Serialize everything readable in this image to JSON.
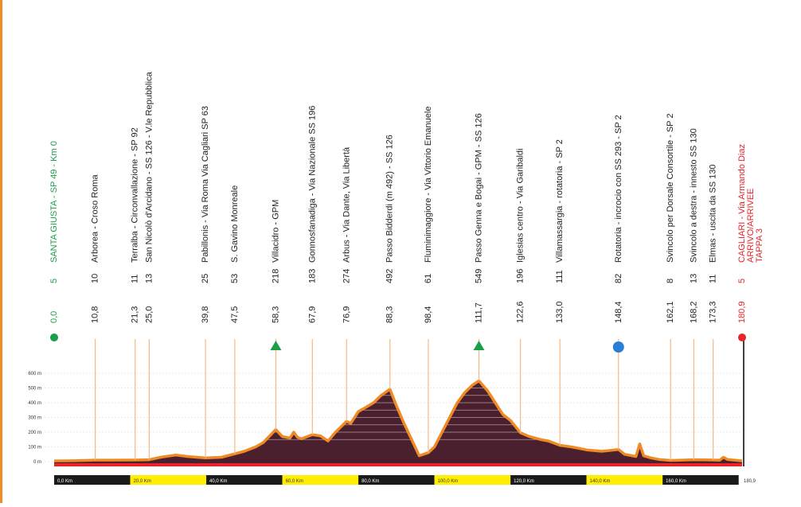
{
  "chart_data": {
    "type": "area",
    "title": "",
    "xlabel": "",
    "ylabel": "",
    "xlim": [
      0,
      180.9
    ],
    "ylim": [
      0,
      600
    ],
    "y_ticks": [
      "0 m",
      "100 m",
      "200 m",
      "300 m",
      "400 m",
      "500 m",
      "600 m"
    ],
    "x_ticks": [
      "0,0 Km",
      "20,0 Km",
      "40,0 Km",
      "60,0 Km",
      "80,0 Km",
      "100,0 Km",
      "120,0 Km",
      "140,0 Km",
      "160,0 Km",
      "180,9"
    ],
    "grid": true,
    "colors": {
      "fill": "#4a1f2e",
      "outline": "#f08a24",
      "start": "#1a9e4a",
      "finish": "#e8242a",
      "gpm": "#1a9e4a",
      "sprint": "#2a7fd4",
      "band_dark": "#1a1a1a",
      "band_light": "#ffee00",
      "marker_line": "#f2b98a"
    },
    "profile": {
      "x": [
        0,
        5,
        10.8,
        15,
        21.3,
        25,
        28,
        32,
        35,
        39.8,
        44,
        47.5,
        50,
        53,
        55,
        58.3,
        60,
        62,
        63,
        64,
        65,
        67.9,
        70,
        72,
        74,
        76.9,
        78,
        80,
        82,
        84,
        86,
        88.3,
        90,
        92,
        94,
        96,
        98.4,
        100,
        102,
        104,
        106,
        108,
        110,
        111.7,
        114,
        116,
        118,
        120,
        122.6,
        125,
        128,
        130,
        133,
        136,
        140,
        144,
        148.4,
        150,
        152,
        153,
        154,
        155,
        157,
        159,
        162.1,
        165,
        168.2,
        171,
        173.3,
        175,
        176,
        177,
        180.9
      ],
      "y": [
        5,
        6,
        10,
        10,
        11,
        13,
        30,
        45,
        35,
        25,
        30,
        53,
        70,
        100,
        130,
        218,
        170,
        160,
        200,
        165,
        155,
        183,
        175,
        140,
        200,
        274,
        260,
        340,
        370,
        400,
        450,
        492,
        380,
        260,
        150,
        40,
        61,
        100,
        200,
        300,
        400,
        470,
        520,
        549,
        480,
        400,
        320,
        280,
        196,
        170,
        150,
        140,
        111,
        100,
        80,
        70,
        82,
        50,
        40,
        35,
        120,
        40,
        25,
        15,
        8,
        10,
        13,
        12,
        11,
        9,
        30,
        15,
        5
      ]
    },
    "waypoints": [
      {
        "km": "0,0",
        "alt": "5",
        "name": "SANTA GIUSTA - SP 49 - Km 0",
        "color": "#1a9e4a",
        "marker": "start"
      },
      {
        "km": "10,8",
        "alt": "10",
        "name": "Arborea - Croso Roma"
      },
      {
        "km": "21,3",
        "alt": "11",
        "name": "Terralba - Circonvallazione - SP 92"
      },
      {
        "km": "25,0",
        "alt": "13",
        "name": "San Nicolò d'Arcidano - SS 126 - V.le Repubblica"
      },
      {
        "km": "39,8",
        "alt": "25",
        "name": "Pabillonis - Via Roma Via Cagliari SP 63"
      },
      {
        "km": "47,5",
        "alt": "53",
        "name": "S. Gavino Monreale"
      },
      {
        "km": "58,3",
        "alt": "218",
        "name": "Villacidro - GPM",
        "marker": "gpm"
      },
      {
        "km": "67,9",
        "alt": "183",
        "name": "Gonnosfanadiga - Via Nazionale SS 196"
      },
      {
        "km": "76,9",
        "alt": "274",
        "name": "Arbus - Via Dante, Via Libertà"
      },
      {
        "km": "88,3",
        "alt": "492",
        "name": "Passo Bidderdi (m 492) - SS 126"
      },
      {
        "km": "98,4",
        "alt": "61",
        "name": "Fluminimaggiore - Via Vittorio Emanuele"
      },
      {
        "km": "111,7",
        "alt": "549",
        "name": "Passo Genna e Bogai - GPM - SS 126",
        "marker": "gpm"
      },
      {
        "km": "122,6",
        "alt": "196",
        "name": "Iglesias centro - Via Garibaldi"
      },
      {
        "km": "133,0",
        "alt": "111",
        "name": "Villamassargia - rotatoria - SP 2"
      },
      {
        "km": "148,4",
        "alt": "82",
        "name": "Rotatoria - incrocio con SS 293 - SP 2",
        "marker": "sprint"
      },
      {
        "km": "162,1",
        "alt": "8",
        "name": "Svincolo per Dorsale Consortile - SP 2"
      },
      {
        "km": "168,2",
        "alt": "13",
        "name": "Svincolo a destra - innesto SS 130"
      },
      {
        "km": "173,3",
        "alt": "11",
        "name": "Elmas - uscita da SS 130"
      },
      {
        "km": "180,9",
        "alt": "5",
        "name": "CAGLIARI - Via Armando Diaz",
        "name2": "ARRIVO/ARRIVEE",
        "name3": "TAPPA 3",
        "color": "#e8242a",
        "marker": "finish"
      }
    ]
  }
}
